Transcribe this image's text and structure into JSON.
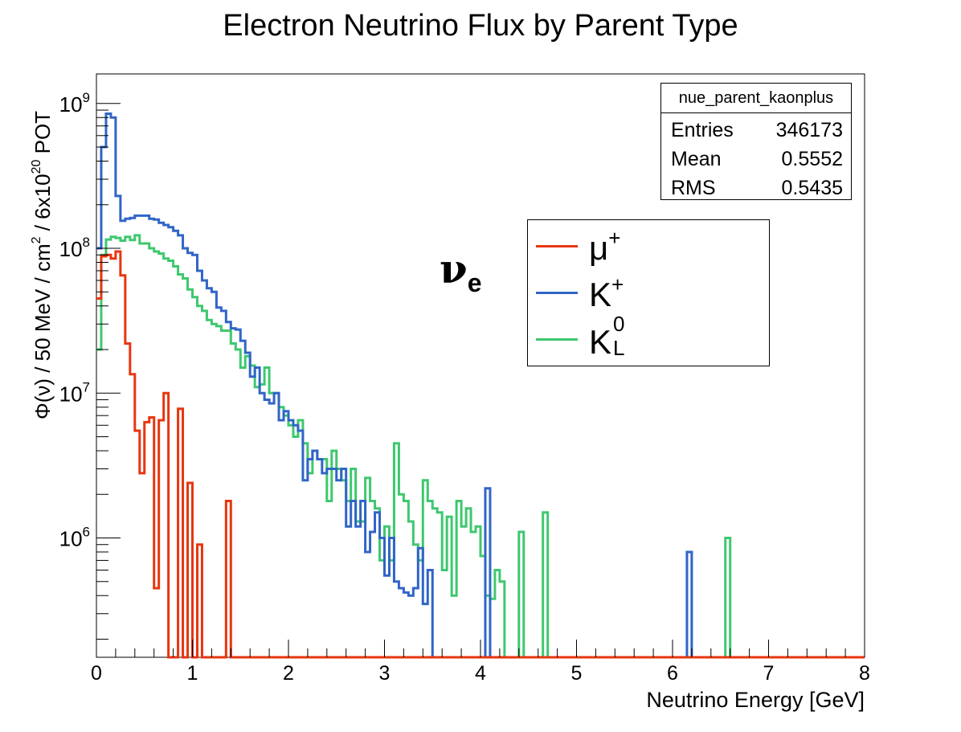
{
  "chart_data": {
    "type": "line",
    "title": "Electron Neutrino Flux by Parent Type",
    "xlabel": "Neutrino Energy [GeV]",
    "ylabel_parts": {
      "a": "Φ(ν) / 50 MeV / cm",
      "b": "2",
      "c": " / 6x10",
      "d": "20",
      "e": " POT"
    },
    "xlim": [
      0,
      8
    ],
    "ylim": [
      150000,
      1600000000
    ],
    "log_y": true,
    "bin_width": 0.05,
    "x_ticks": [
      "0",
      "1",
      "2",
      "3",
      "4",
      "5",
      "6",
      "7",
      "8"
    ],
    "y_ticks": [
      {
        "value": 1000000,
        "mant": "10",
        "exp": "6"
      },
      {
        "value": 10000000,
        "mant": "10",
        "exp": "7"
      },
      {
        "value": 100000000,
        "mant": "10",
        "exp": "8"
      },
      {
        "value": 1000000000,
        "mant": "10",
        "exp": "9"
      }
    ],
    "stats": {
      "name": "nue_parent_kaonplus",
      "rows": [
        {
          "label": "Entries",
          "value": "346173"
        },
        {
          "label": "Mean",
          "value": "0.5552"
        },
        {
          "label": "RMS",
          "value": "0.5435"
        }
      ]
    },
    "annotation": {
      "nu": "ν",
      "sub": "e"
    },
    "series": [
      {
        "name": "μ",
        "sup": "+",
        "sub": "",
        "color": "#e8350f",
        "values": [
          45000000,
          88000000,
          90000000,
          85000000,
          95000000,
          65000000,
          22000000,
          13500000,
          5500000,
          2800000,
          6300000,
          6800000,
          450000,
          6500000,
          10000000,
          0,
          0,
          7800000,
          0,
          2400000,
          0,
          900000,
          0,
          0,
          0,
          0,
          0,
          1800000
        ]
      },
      {
        "name": "K",
        "sup": "+",
        "sub": "",
        "color": "#3065c7",
        "values": [
          100000000,
          500000000,
          850000000,
          800000000,
          230000000,
          155000000,
          160000000,
          162000000,
          168000000,
          168000000,
          168000000,
          160000000,
          158000000,
          150000000,
          145000000,
          140000000,
          132000000,
          123000000,
          100000000,
          93000000,
          90000000,
          70000000,
          60000000,
          53000000,
          50000000,
          39000000,
          37000000,
          31000000,
          28000000,
          27500000,
          23000000,
          19000000,
          13000000,
          15000000,
          10000000,
          9000000,
          8500000,
          10000000,
          6500000,
          7500000,
          6500000,
          6000000,
          5500000,
          2500000,
          3500000,
          4000000,
          3500000,
          2800000,
          3000000,
          3000000,
          2500000,
          3000000,
          1200000,
          1800000,
          1200000,
          1800000,
          800000,
          1100000,
          1500000,
          1000000,
          550000,
          1000000,
          500000,
          450000,
          420000,
          400000,
          450000,
          850000,
          350000,
          600000,
          0,
          0,
          0,
          0,
          0,
          0,
          0,
          0,
          0,
          0,
          0,
          2200000,
          0,
          0,
          0,
          0,
          0,
          0,
          0,
          0,
          0,
          0,
          0,
          0,
          0,
          0,
          0,
          0,
          0,
          0,
          0,
          0,
          0,
          0,
          0,
          0,
          0,
          0,
          0,
          0,
          0,
          0,
          0,
          0,
          0,
          0,
          0,
          0,
          0,
          0,
          0,
          0,
          0,
          800000
        ]
      },
      {
        "name": "K",
        "sup": "0",
        "sub": "L",
        "color": "#3ec86e",
        "values": [
          20000000,
          90000000,
          115000000,
          120000000,
          118000000,
          113000000,
          120000000,
          114000000,
          123000000,
          108000000,
          108000000,
          100000000,
          95000000,
          92000000,
          85000000,
          82000000,
          75000000,
          66000000,
          62000000,
          52000000,
          46000000,
          40000000,
          37000000,
          32000000,
          30000000,
          29000000,
          27000000,
          27000000,
          22000000,
          20000000,
          15000000,
          18000000,
          15500000,
          11000000,
          11500000,
          15000000,
          10000000,
          10000000,
          8000000,
          7000000,
          6000000,
          5000000,
          6500000,
          4500000,
          2800000,
          4000000,
          3500000,
          3500000,
          1800000,
          4000000,
          3000000,
          2500000,
          1800000,
          3000000,
          1300000,
          1300000,
          2600000,
          1800000,
          1600000,
          700000,
          1200000,
          700000,
          4500000,
          2000000,
          1800000,
          1300000,
          900000,
          700000,
          2500000,
          1800000,
          1600000,
          1500000,
          600000,
          1400000,
          400000,
          1800000,
          1200000,
          1600000,
          1100000,
          1200000,
          750000,
          400000,
          380000,
          600000,
          500000,
          0,
          0,
          0,
          1100000,
          0,
          0,
          0,
          0,
          1500000,
          0,
          0,
          0,
          0,
          0,
          0,
          0,
          0,
          0,
          0,
          0,
          0,
          0,
          0,
          0,
          0,
          0,
          0,
          0,
          0,
          0,
          0,
          0,
          0,
          0,
          0,
          0,
          0,
          0,
          0,
          0,
          0,
          0,
          0,
          0,
          0,
          0,
          1000000
        ]
      }
    ]
  }
}
